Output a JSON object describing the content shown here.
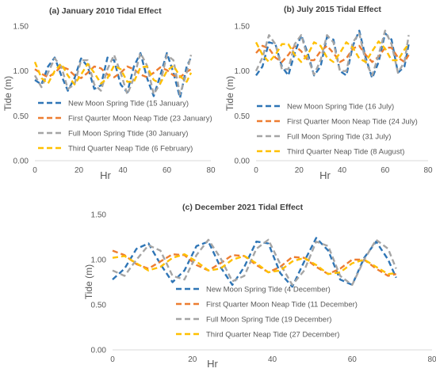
{
  "colors": {
    "new_moon": "#2E75B6",
    "first_quarter": "#ED7D31",
    "full_moon": "#A5A5A5",
    "third_quarter": "#FFC000",
    "axis": "#d9d9d9",
    "text": "#595959",
    "title": "#404040"
  },
  "chart_data": [
    {
      "type": "line",
      "title": "(a) January 2010 Tidal Effect",
      "xlabel": "Hr",
      "ylabel": "Tide (m)",
      "xlim": [
        0,
        80
      ],
      "ylim": [
        0,
        1.5
      ],
      "x_ticks": [
        "0",
        "20",
        "40",
        "60",
        "80"
      ],
      "y_ticks": [
        "0.00",
        "0.50",
        "1.00",
        "1.50"
      ],
      "grid": false,
      "legend_position": "bottom-left",
      "series": [
        {
          "name": "New Moon Spring Tide (15 January)",
          "color_key": "new_moon",
          "x": [
            0,
            3,
            6,
            9,
            12,
            15,
            18,
            21,
            24,
            27,
            30,
            33,
            36,
            39,
            42,
            45,
            48,
            51,
            54,
            57,
            60,
            63,
            66,
            69,
            71
          ],
          "y": [
            0.9,
            0.85,
            1.05,
            1.15,
            0.95,
            0.78,
            0.92,
            1.14,
            1.05,
            0.8,
            0.84,
            1.15,
            1.12,
            0.85,
            0.76,
            1.05,
            1.2,
            0.92,
            0.72,
            0.95,
            1.2,
            0.98,
            0.7,
            1.05,
            1.15
          ]
        },
        {
          "name": "First Qaurter Moon Neap Tide (23 January)",
          "color_key": "first_quarter",
          "x": [
            0,
            3,
            6,
            9,
            12,
            15,
            18,
            21,
            24,
            27,
            30,
            33,
            36,
            39,
            42,
            45,
            48,
            51,
            54,
            57,
            60,
            63,
            66,
            69,
            71
          ],
          "y": [
            1.02,
            0.97,
            0.93,
            0.98,
            1.05,
            1.02,
            0.95,
            0.92,
            0.98,
            1.05,
            1.03,
            0.96,
            0.93,
            0.98,
            1.05,
            1.02,
            0.96,
            0.93,
            0.98,
            1.04,
            1.01,
            0.95,
            0.93,
            0.99,
            1.02
          ]
        },
        {
          "name": "Full Moon Spring Ttide (30 January)",
          "color_key": "full_moon",
          "x": [
            0,
            3,
            6,
            9,
            12,
            15,
            18,
            21,
            24,
            27,
            30,
            33,
            36,
            39,
            42,
            45,
            48,
            51,
            54,
            57,
            60,
            63,
            66,
            69,
            71
          ],
          "y": [
            0.95,
            0.82,
            0.98,
            1.14,
            1.05,
            0.8,
            0.85,
            1.12,
            1.12,
            0.85,
            0.78,
            1.02,
            1.18,
            0.98,
            0.74,
            0.92,
            1.2,
            1.06,
            0.74,
            0.86,
            1.18,
            1.12,
            0.74,
            0.98,
            1.18
          ]
        },
        {
          "name": "Third Quarter Neap Tide (6 February)",
          "color_key": "third_quarter",
          "x": [
            0,
            3,
            6,
            9,
            12,
            15,
            18,
            21,
            24,
            27,
            30,
            33,
            36,
            39,
            42,
            45,
            48,
            51,
            54,
            57,
            60,
            63,
            66,
            69,
            71
          ],
          "y": [
            1.1,
            0.92,
            0.86,
            1.0,
            1.08,
            0.95,
            0.85,
            0.96,
            1.08,
            0.98,
            0.86,
            0.92,
            1.06,
            1.02,
            0.88,
            0.88,
            1.04,
            1.05,
            0.9,
            0.86,
            1.0,
            1.06,
            0.94,
            0.88,
            0.98
          ]
        }
      ]
    },
    {
      "type": "line",
      "title": "(b) July 2015 Tidal Effect",
      "xlabel": "Hr",
      "ylabel": "Tide (m)",
      "xlim": [
        0,
        80
      ],
      "ylim": [
        0,
        1.5
      ],
      "x_ticks": [
        "0",
        "20",
        "40",
        "60",
        "80"
      ],
      "y_ticks": [
        "0.00",
        "0.50",
        "1.00",
        "1.50"
      ],
      "grid": false,
      "legend_position": "bottom-left",
      "series": [
        {
          "name": "New Moon Spring Tide (16 July)",
          "color_key": "new_moon",
          "x": [
            0,
            3,
            6,
            9,
            12,
            15,
            18,
            21,
            24,
            27,
            30,
            33,
            36,
            39,
            42,
            45,
            48,
            51,
            54,
            57,
            60,
            63,
            66,
            69,
            71
          ],
          "y": [
            0.95,
            1.05,
            1.32,
            1.3,
            1.05,
            0.95,
            1.2,
            1.4,
            1.2,
            0.95,
            1.05,
            1.38,
            1.35,
            1.0,
            0.95,
            1.28,
            1.45,
            1.15,
            0.92,
            1.1,
            1.42,
            1.35,
            0.98,
            1.05,
            1.3
          ]
        },
        {
          "name": "First Quarter Moon Neap Tide (24 July)",
          "color_key": "first_quarter",
          "x": [
            0,
            3,
            6,
            9,
            12,
            15,
            18,
            21,
            24,
            27,
            30,
            33,
            36,
            39,
            42,
            45,
            48,
            51,
            54,
            57,
            60,
            63,
            66,
            69,
            71
          ],
          "y": [
            1.2,
            1.28,
            1.25,
            1.15,
            1.1,
            1.18,
            1.28,
            1.22,
            1.12,
            1.12,
            1.22,
            1.28,
            1.2,
            1.1,
            1.14,
            1.25,
            1.28,
            1.18,
            1.1,
            1.16,
            1.26,
            1.26,
            1.15,
            1.1,
            1.18
          ]
        },
        {
          "name": "Full Moon Spring Tide (31 July)",
          "color_key": "full_moon",
          "x": [
            0,
            3,
            6,
            9,
            12,
            15,
            18,
            21,
            24,
            27,
            30,
            33,
            36,
            39,
            42,
            45,
            48,
            51,
            54,
            57,
            60,
            63,
            66,
            69,
            71
          ],
          "y": [
            1.0,
            1.15,
            1.4,
            1.3,
            1.02,
            1.02,
            1.3,
            1.4,
            1.15,
            0.96,
            1.12,
            1.4,
            1.32,
            1.0,
            1.0,
            1.32,
            1.42,
            1.1,
            0.95,
            1.18,
            1.45,
            1.3,
            0.98,
            1.1,
            1.4
          ]
        },
        {
          "name": "Third Quarter Neap Tide (8 August)",
          "color_key": "third_quarter",
          "x": [
            0,
            3,
            6,
            9,
            12,
            15,
            18,
            21,
            24,
            27,
            30,
            33,
            36,
            39,
            42,
            45,
            48,
            51,
            54,
            57,
            60,
            63,
            66,
            69,
            71
          ],
          "y": [
            1.32,
            1.18,
            1.1,
            1.18,
            1.3,
            1.3,
            1.18,
            1.1,
            1.18,
            1.32,
            1.28,
            1.15,
            1.1,
            1.2,
            1.32,
            1.26,
            1.14,
            1.1,
            1.22,
            1.33,
            1.25,
            1.12,
            1.12,
            1.24,
            1.3
          ]
        }
      ]
    },
    {
      "type": "line",
      "title": "(c) December 2021 Tidal Effect",
      "xlabel": "Hr",
      "ylabel": "Tide (m)",
      "xlim": [
        0,
        80
      ],
      "ylim": [
        0,
        1.5
      ],
      "x_ticks": [
        "0",
        "20",
        "40",
        "60",
        "80"
      ],
      "y_ticks": [
        "0.00",
        "0.50",
        "1.00",
        "1.50"
      ],
      "grid": false,
      "legend_position": "bottom-center",
      "series": [
        {
          "name": "New Moon Spring Tide (4 December)",
          "color_key": "new_moon",
          "x": [
            0,
            3,
            6,
            9,
            12,
            15,
            18,
            21,
            24,
            27,
            30,
            33,
            36,
            39,
            42,
            45,
            48,
            51,
            54,
            57,
            60,
            63,
            66,
            69,
            71
          ],
          "y": [
            0.78,
            0.9,
            1.12,
            1.18,
            0.95,
            0.75,
            0.88,
            1.15,
            1.2,
            0.92,
            0.72,
            0.92,
            1.2,
            1.18,
            0.85,
            0.7,
            0.98,
            1.24,
            1.1,
            0.78,
            0.72,
            1.02,
            1.2,
            1.0,
            0.8
          ]
        },
        {
          "name": "First Quarter Moon Neap Tide (11 December)",
          "color_key": "first_quarter",
          "x": [
            0,
            3,
            6,
            9,
            12,
            15,
            18,
            21,
            24,
            27,
            30,
            33,
            36,
            39,
            42,
            45,
            48,
            51,
            54,
            57,
            60,
            63,
            66,
            69,
            71
          ],
          "y": [
            1.1,
            1.05,
            0.95,
            0.9,
            0.98,
            1.06,
            1.05,
            0.94,
            0.88,
            0.96,
            1.05,
            1.04,
            0.94,
            0.86,
            0.92,
            1.03,
            1.02,
            0.92,
            0.84,
            0.9,
            1.0,
            1.0,
            0.9,
            0.82,
            0.84
          ]
        },
        {
          "name": "Full Moon Spring Tide (19 December)",
          "color_key": "full_moon",
          "x": [
            0,
            3,
            6,
            9,
            12,
            15,
            18,
            21,
            24,
            27,
            30,
            33,
            36,
            39,
            42,
            45,
            48,
            51,
            54,
            57,
            60,
            63,
            66,
            69,
            71
          ],
          "y": [
            0.88,
            0.82,
            1.0,
            1.16,
            1.1,
            0.82,
            0.78,
            1.05,
            1.22,
            1.02,
            0.76,
            0.82,
            1.12,
            1.22,
            0.95,
            0.72,
            0.88,
            1.2,
            1.15,
            0.82,
            0.72,
            1.0,
            1.22,
            1.12,
            0.9
          ]
        },
        {
          "name": "Third Quarter Neap Tide (27 December)",
          "color_key": "third_quarter",
          "x": [
            0,
            3,
            6,
            9,
            12,
            15,
            18,
            21,
            24,
            27,
            30,
            33,
            36,
            39,
            42,
            45,
            48,
            51,
            54,
            57,
            60,
            63,
            66,
            69,
            71
          ],
          "y": [
            1.02,
            1.04,
            0.96,
            0.88,
            0.92,
            1.02,
            1.06,
            0.98,
            0.88,
            0.9,
            1.0,
            1.04,
            0.96,
            0.86,
            0.88,
            0.98,
            1.02,
            0.94,
            0.84,
            0.86,
            0.96,
            1.0,
            0.92,
            0.84,
            0.85
          ]
        }
      ]
    }
  ]
}
